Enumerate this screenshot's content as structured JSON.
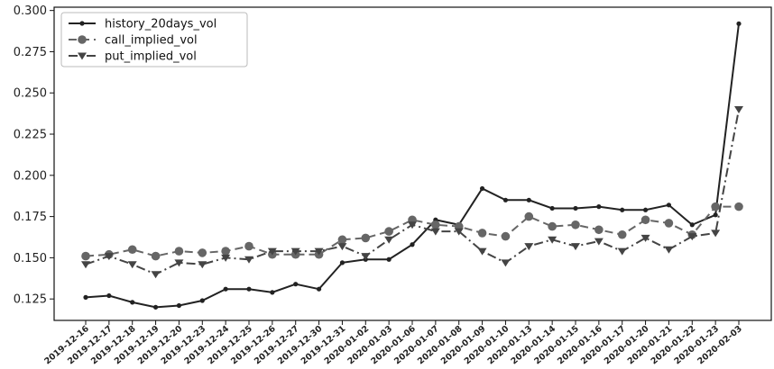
{
  "chart_data": {
    "type": "line",
    "x": [
      "2019-12-16",
      "2019-12-17",
      "2019-12-18",
      "2019-12-19",
      "2019-12-20",
      "2019-12-23",
      "2019-12-24",
      "2019-12-25",
      "2019-12-26",
      "2019-12-27",
      "2019-12-30",
      "2019-12-31",
      "2020-01-02",
      "2020-01-03",
      "2020-01-06",
      "2020-01-07",
      "2020-01-08",
      "2020-01-09",
      "2020-01-10",
      "2020-01-13",
      "2020-01-14",
      "2020-01-15",
      "2020-01-16",
      "2020-01-17",
      "2020-01-20",
      "2020-01-21",
      "2020-01-22",
      "2020-01-23",
      "2020-02-03"
    ],
    "series": [
      {
        "name": "history_20days_vol",
        "color": "#222222",
        "line_style": "solid",
        "marker": "circle-small",
        "values": [
          0.126,
          0.127,
          0.123,
          0.12,
          0.121,
          0.124,
          0.131,
          0.131,
          0.129,
          0.134,
          0.131,
          0.147,
          0.149,
          0.149,
          0.158,
          0.173,
          0.17,
          0.192,
          0.185,
          0.185,
          0.18,
          0.18,
          0.181,
          0.179,
          0.179,
          0.182,
          0.17,
          0.176,
          0.292
        ]
      },
      {
        "name": "call_implied_vol",
        "color": "#666666",
        "line_style": "dashed",
        "marker": "circle-large",
        "values": [
          0.151,
          0.152,
          0.155,
          0.151,
          0.154,
          0.153,
          0.154,
          0.157,
          0.152,
          0.152,
          0.152,
          0.161,
          0.162,
          0.166,
          0.173,
          0.17,
          0.169,
          0.165,
          0.163,
          0.175,
          0.169,
          0.17,
          0.167,
          0.164,
          0.173,
          0.171,
          0.164,
          0.181,
          0.181
        ]
      },
      {
        "name": "put_implied_vol",
        "color": "#444444",
        "line_style": "dashdot",
        "marker": "triangle-down",
        "values": [
          0.146,
          0.151,
          0.146,
          0.14,
          0.147,
          0.146,
          0.15,
          0.149,
          0.154,
          0.154,
          0.154,
          0.157,
          0.151,
          0.161,
          0.17,
          0.166,
          0.166,
          0.154,
          0.147,
          0.157,
          0.161,
          0.157,
          0.16,
          0.154,
          0.162,
          0.155,
          0.163,
          0.165,
          0.24
        ]
      }
    ],
    "y_ticks": [
      "0.125",
      "0.150",
      "0.175",
      "0.200",
      "0.225",
      "0.250",
      "0.275",
      "0.300"
    ],
    "ylim": [
      0.112,
      0.302
    ],
    "title": "",
    "xlabel": "",
    "ylabel": "",
    "grid": false,
    "legend_position": "top-left"
  }
}
